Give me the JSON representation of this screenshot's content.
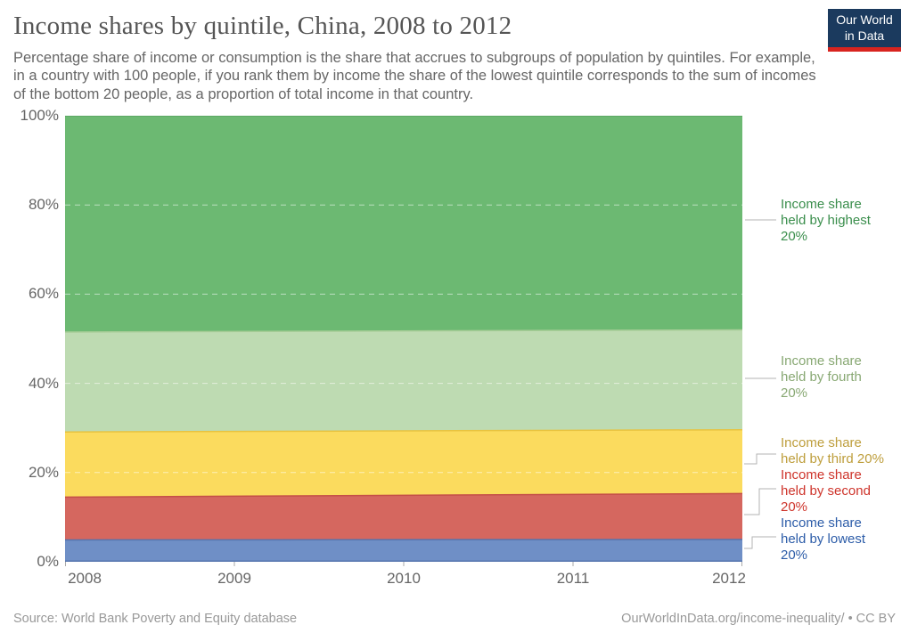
{
  "header": {
    "title": "Income shares by quintile, China, 2008 to 2012",
    "subtitle": "Percentage share of income or consumption is the share that accrues to subgroups of population by quintiles. For example, in a country with 100 people, if you rank them by income the share of the lowest quintile corresponds to the sum of incomes of the bottom 20 people, as a proportion of total income in that country.",
    "logo": {
      "line1": "Our World",
      "line2": "in Data",
      "bg_color": "#1B3A5E",
      "accent_color": "#D8241F"
    }
  },
  "chart_data": {
    "type": "area",
    "stacked": true,
    "title": "Income shares by quintile, China, 2008 to 2012",
    "xlabel": "",
    "ylabel": "",
    "x": [
      2008,
      2012
    ],
    "x_ticks": [
      "2008",
      "2009",
      "2010",
      "2011",
      "2012"
    ],
    "y_ticks": [
      "0%",
      "20%",
      "40%",
      "60%",
      "80%",
      "100%"
    ],
    "ylim": [
      0,
      100
    ],
    "grid": "dashed-horizontal",
    "legend_position": "right",
    "series": [
      {
        "key": "lowest",
        "name": "Income share held by lowest 20%",
        "values": [
          4.9,
          5.0
        ],
        "fill": "#6F8FC6",
        "border": "#5574AE",
        "label_color": "#2C5CA8"
      },
      {
        "key": "second",
        "name": "Income share held by second 20%",
        "values": [
          9.6,
          10.3
        ],
        "fill": "#D5675F",
        "border": "#C44F48",
        "label_color": "#CE342B"
      },
      {
        "key": "third",
        "name": "Income share held by third 20%",
        "values": [
          14.6,
          14.3
        ],
        "fill": "#FBDB5E",
        "border": "#E8C33F",
        "label_color": "#BE9E3C"
      },
      {
        "key": "fourth",
        "name": "Income share held by fourth 20%",
        "values": [
          22.4,
          22.4
        ],
        "fill": "#BEDBB2",
        "border": "#A6CC96",
        "label_color": "#88A873"
      },
      {
        "key": "highest",
        "name": "Income share held by highest 20%",
        "values": [
          48.5,
          48.0
        ],
        "fill": "#6CB972",
        "border": "#57A35F",
        "label_color": "#3A8E4C"
      }
    ]
  },
  "legend": [
    {
      "key": "highest",
      "lines": [
        "Income share",
        "held by highest",
        "20%"
      ],
      "color": "#3A8E4C"
    },
    {
      "key": "fourth",
      "lines": [
        "Income share",
        "held by fourth",
        "20%"
      ],
      "color": "#88A873"
    },
    {
      "key": "third",
      "lines": [
        "Income share",
        "held by third 20%"
      ],
      "color": "#BE9E3C"
    },
    {
      "key": "second",
      "lines": [
        "Income share",
        "held by second",
        "20%"
      ],
      "color": "#CE342B"
    },
    {
      "key": "lowest",
      "lines": [
        "Income share",
        "held by lowest",
        "20%"
      ],
      "color": "#2C5CA8"
    }
  ],
  "footer": {
    "source": "Source: World Bank Poverty and Equity database",
    "link": "OurWorldInData.org/income-inequality/ • CC BY"
  }
}
